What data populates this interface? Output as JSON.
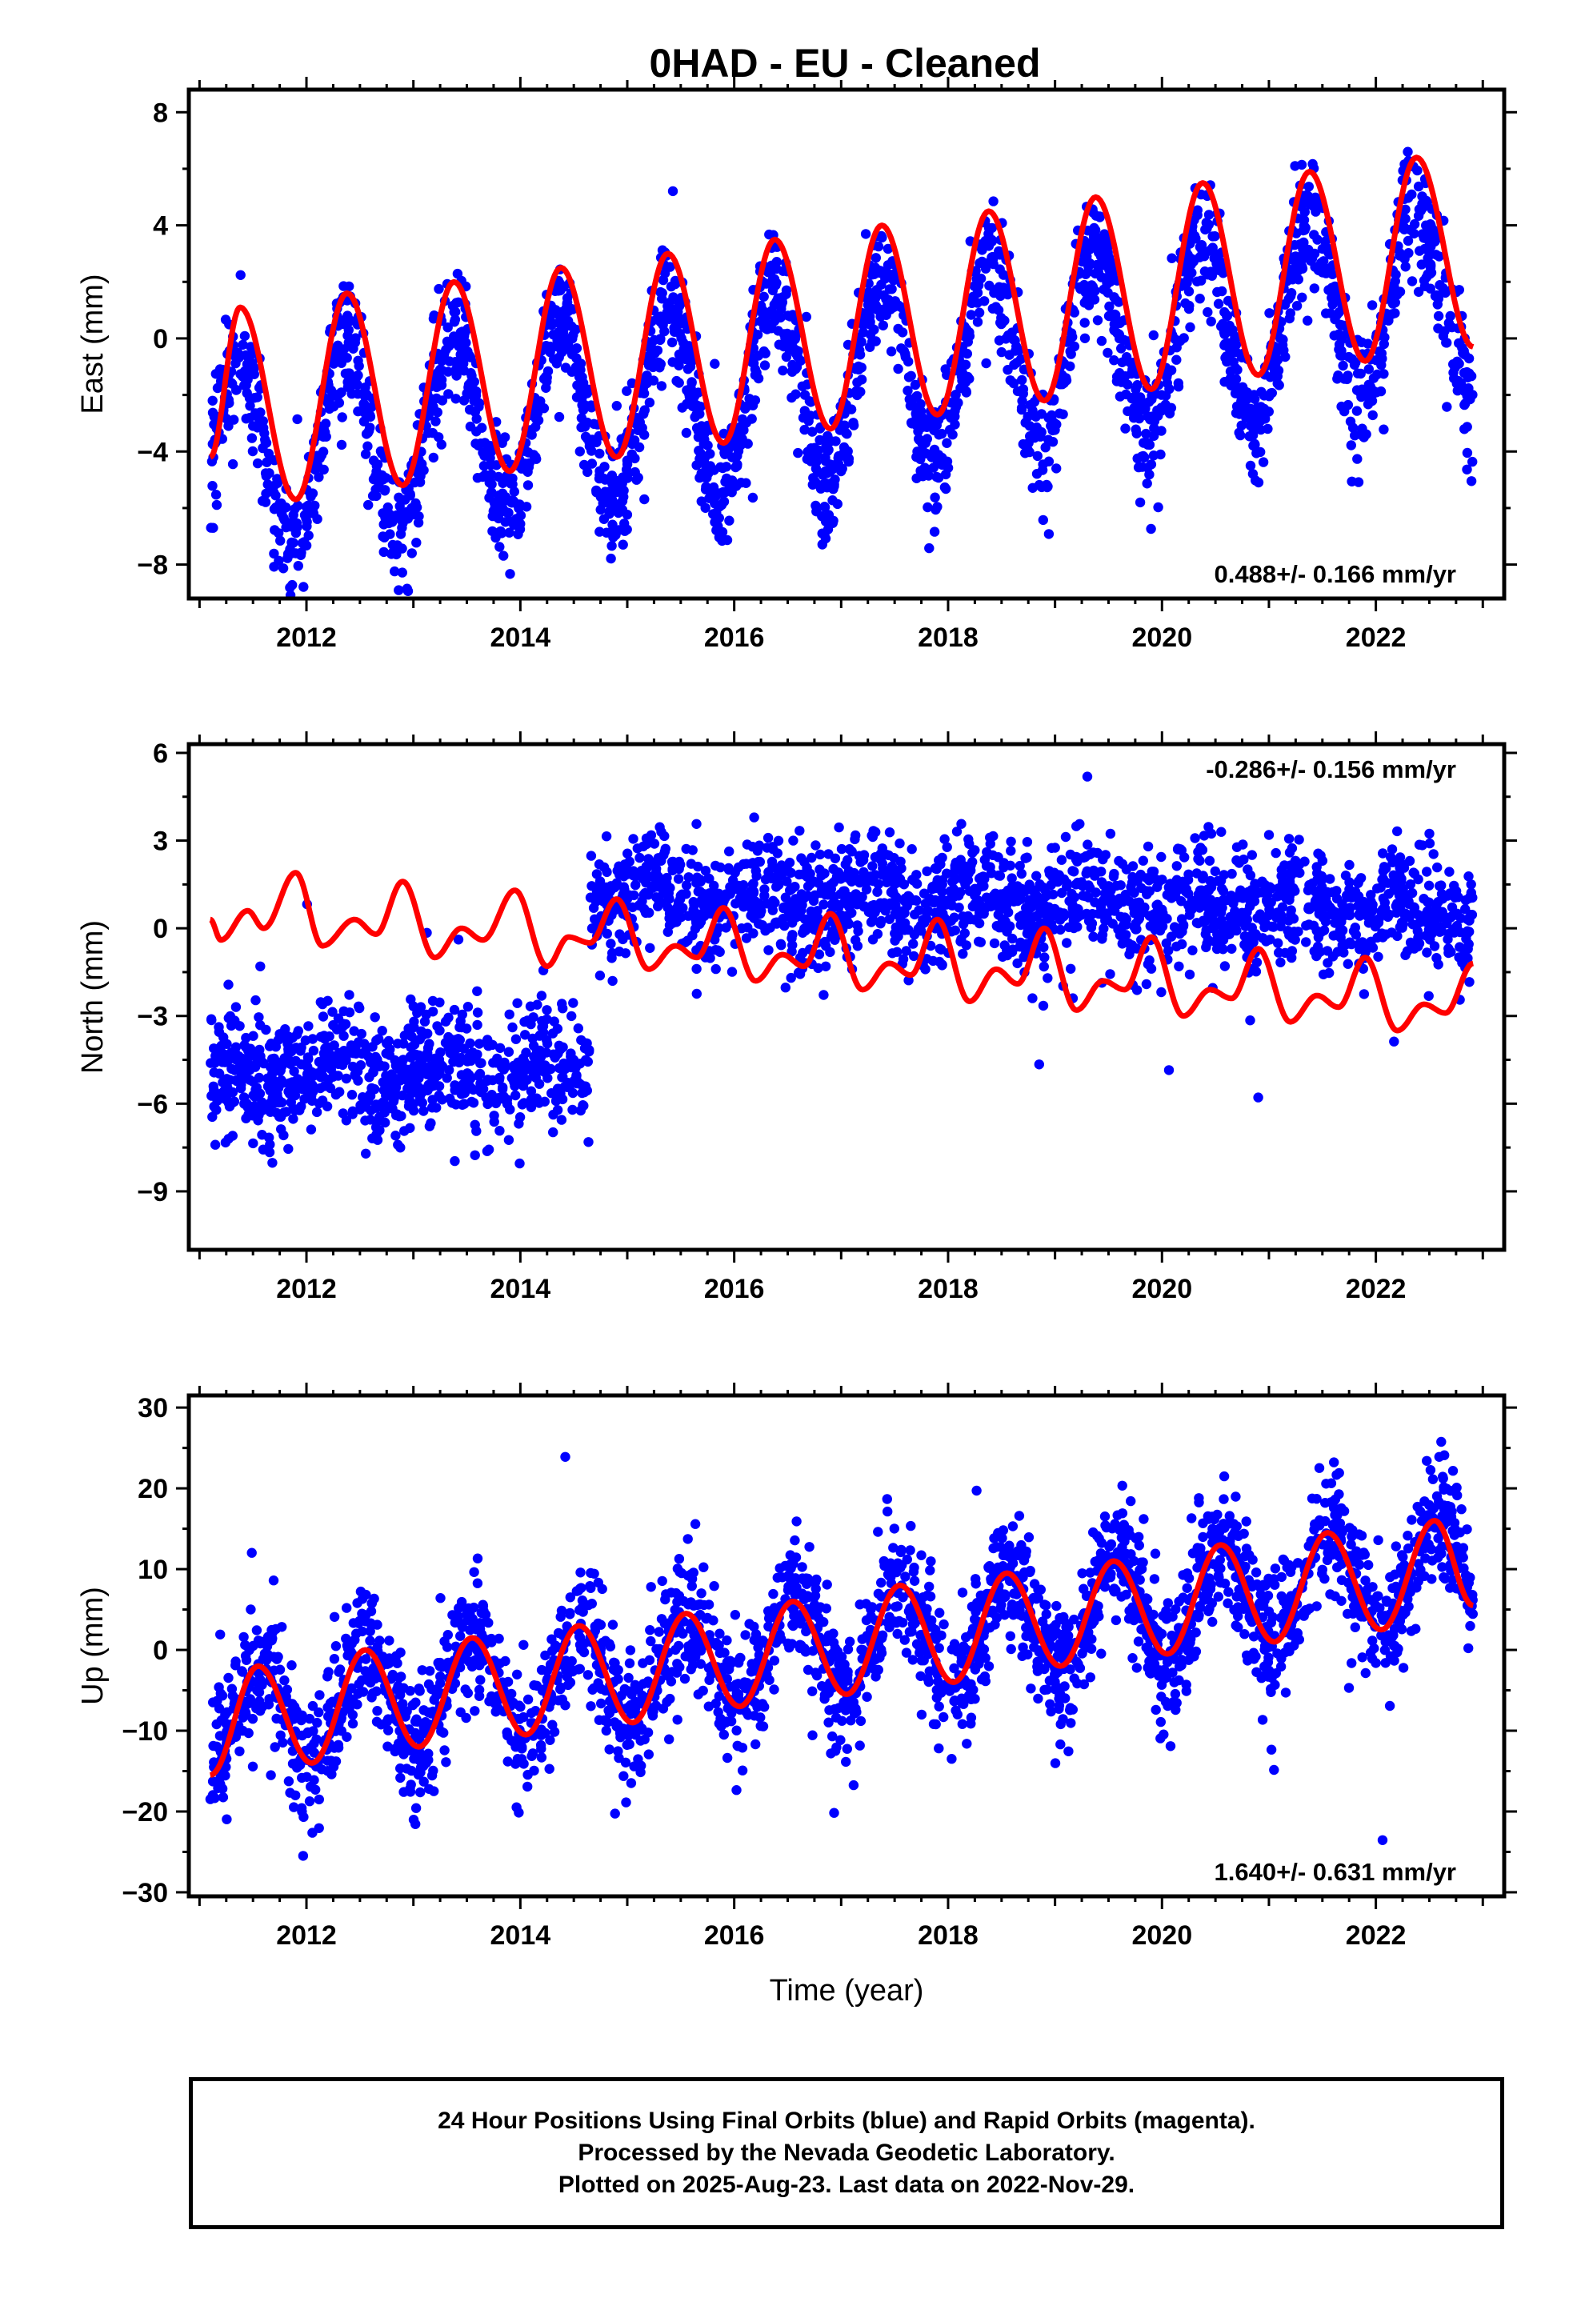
{
  "title": "0HAD  - EU - Cleaned",
  "footer": {
    "line1": "24 Hour Positions Using Final Orbits (blue) and Rapid Orbits (magenta).",
    "line2": "Processed by the Nevada Geodetic Laboratory.",
    "line3": "Plotted on 2025-Aug-23. Last data on 2022-Nov-29."
  },
  "colors": {
    "observations": "#0000ff",
    "model": "#ff0000",
    "frame": "#000000"
  },
  "chart_data": [
    {
      "type": "scatter",
      "ylabel": "East (mm)",
      "xlabel": "",
      "xlim": [
        2010.9,
        2023.2
      ],
      "ylim": [
        -9.2,
        8.8
      ],
      "yticks": [
        -8,
        -4,
        0,
        4,
        8
      ],
      "xticks": [
        2012,
        2014,
        2016,
        2018,
        2020,
        2022
      ],
      "rate_label": "0.488+/- 0.166 mm/yr",
      "rate_position": "bottom-right",
      "data_span": [
        2011.1,
        2022.91
      ],
      "series": [
        {
          "role": "observations",
          "color": "#0000ff",
          "model": {
            "offset": -4.3,
            "rate": 0.488,
            "amp": 3.3,
            "amp_step": 0.2,
            "peak_phase": 0.37,
            "scatter": 1.1,
            "count": 2600,
            "seed": 11
          }
        },
        {
          "role": "model",
          "color": "#ff0000",
          "x": [
            2011.1,
            2011.38,
            2011.9,
            2012.38,
            2012.9,
            2013.38,
            2013.9,
            2014.38,
            2014.9,
            2015.38,
            2015.9,
            2016.38,
            2016.9,
            2017.38,
            2017.9,
            2018.38,
            2018.9,
            2019.38,
            2019.9,
            2020.38,
            2020.9,
            2021.38,
            2021.9,
            2022.38,
            2022.91
          ],
          "y": [
            -4.2,
            1.1,
            -5.7,
            1.6,
            -5.2,
            2.0,
            -4.7,
            2.5,
            -4.2,
            3.0,
            -3.7,
            3.5,
            -3.2,
            4.0,
            -2.7,
            4.5,
            -2.2,
            5.0,
            -1.8,
            5.5,
            -1.3,
            5.9,
            -0.8,
            6.4,
            -0.3
          ]
        }
      ]
    },
    {
      "type": "scatter",
      "ylabel": "North (mm)",
      "xlabel": "",
      "xlim": [
        2010.9,
        2023.2
      ],
      "ylim": [
        -11,
        6.3
      ],
      "yticks": [
        -9,
        -6,
        -3,
        0,
        3,
        6
      ],
      "xticks": [
        2012,
        2014,
        2016,
        2018,
        2020,
        2022
      ],
      "rate_label": "-0.286+/- 0.156 mm/yr",
      "rate_position": "top-right",
      "data_span": [
        2011.1,
        2022.91
      ],
      "offset_epoch": 2014.65,
      "series": [
        {
          "role": "observations",
          "color": "#0000ff",
          "model": {
            "before_mean": -5.0,
            "after_mean": 1.2,
            "after_rate": -0.08,
            "scatter": 1.0,
            "count": 2600,
            "seed": 23
          }
        },
        {
          "role": "model",
          "color": "#ff0000",
          "x": [
            2011.1,
            2011.2,
            2011.45,
            2011.6,
            2011.9,
            2012.15,
            2012.45,
            2012.65,
            2012.9,
            2013.2,
            2013.45,
            2013.65,
            2013.95,
            2014.25,
            2014.45,
            2014.65,
            2014.9,
            2015.2,
            2015.45,
            2015.65,
            2015.9,
            2016.2,
            2016.45,
            2016.65,
            2016.9,
            2017.2,
            2017.45,
            2017.65,
            2017.9,
            2018.2,
            2018.45,
            2018.65,
            2018.9,
            2019.2,
            2019.45,
            2019.65,
            2019.9,
            2020.2,
            2020.45,
            2020.65,
            2020.9,
            2021.2,
            2021.45,
            2021.65,
            2021.9,
            2022.2,
            2022.45,
            2022.65,
            2022.91
          ],
          "y": [
            0.3,
            -0.4,
            0.6,
            0.0,
            1.9,
            -0.6,
            0.3,
            -0.2,
            1.6,
            -1.0,
            0.0,
            -0.4,
            1.3,
            -1.3,
            -0.3,
            -0.5,
            1.0,
            -1.4,
            -0.6,
            -1.0,
            0.7,
            -1.8,
            -0.9,
            -1.3,
            0.5,
            -2.1,
            -1.2,
            -1.6,
            0.3,
            -2.5,
            -1.4,
            -1.9,
            0.0,
            -2.8,
            -1.8,
            -2.1,
            -0.3,
            -3.0,
            -2.1,
            -2.4,
            -0.7,
            -3.2,
            -2.3,
            -2.7,
            -1.0,
            -3.5,
            -2.6,
            -2.9,
            -1.2
          ]
        }
      ]
    },
    {
      "type": "scatter",
      "ylabel": "Up (mm)",
      "xlabel": "Time (year)",
      "xlim": [
        2010.9,
        2023.2
      ],
      "ylim": [
        -30.5,
        31.5
      ],
      "yticks": [
        -30,
        -20,
        -10,
        0,
        10,
        20,
        30
      ],
      "xticks": [
        2012,
        2014,
        2016,
        2018,
        2020,
        2022
      ],
      "rate_label": "1.640+/- 0.631 mm/yr",
      "rate_position": "bottom-right",
      "data_span": [
        2011.1,
        2022.91
      ],
      "series": [
        {
          "role": "observations",
          "color": "#0000ff",
          "model": {
            "offset": -9.0,
            "rate": 1.64,
            "amp": 6.5,
            "amp_step": 0.0,
            "peak_phase": 0.55,
            "scatter": 4.2,
            "count": 2600,
            "seed": 37
          }
        },
        {
          "role": "model",
          "color": "#ff0000",
          "x": [
            2011.1,
            2011.55,
            2012.05,
            2012.55,
            2013.05,
            2013.55,
            2014.05,
            2014.55,
            2015.05,
            2015.55,
            2016.05,
            2016.55,
            2017.05,
            2017.55,
            2018.05,
            2018.55,
            2019.05,
            2019.55,
            2020.05,
            2020.55,
            2021.05,
            2021.55,
            2022.05,
            2022.55,
            2022.91
          ],
          "y": [
            -15.5,
            -2.0,
            -14.0,
            0.0,
            -12.0,
            1.5,
            -10.5,
            3.0,
            -9.0,
            4.5,
            -7.0,
            6.0,
            -5.5,
            8.0,
            -4.0,
            9.5,
            -2.0,
            11.0,
            -0.5,
            13.0,
            1.0,
            14.5,
            2.5,
            16.0,
            5.5
          ]
        }
      ]
    }
  ]
}
